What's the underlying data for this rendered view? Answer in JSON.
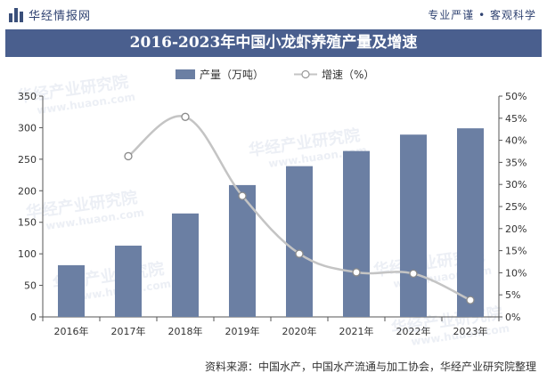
{
  "header": {
    "brand": "华经情报网",
    "tagline": "专业严谨 • 客观科学"
  },
  "footer": {
    "source": "资料来源：中国水产，中国水产流通与加工协会，华经产业研究院整理"
  },
  "watermark": {
    "name": "华经产业研究院",
    "url": "www.huaon.com"
  },
  "colors": {
    "bar": "#6b7fa3",
    "line": "#c4c4c4",
    "title_bg": "#4a5f8e",
    "brand": "#2f4271"
  },
  "chart_data": {
    "type": "bar",
    "title": "2016-2023年中国小龙虾养殖产量及增速",
    "categories": [
      "2016年",
      "2017年",
      "2018年",
      "2019年",
      "2020年",
      "2021年",
      "2022年",
      "2023年"
    ],
    "series": [
      {
        "name": "产量（万吨）",
        "type": "bar",
        "axis": "left",
        "values": [
          82,
          113,
          164,
          209,
          239,
          263,
          289,
          299
        ]
      },
      {
        "name": "增速（%）",
        "type": "line",
        "axis": "right",
        "values": [
          null,
          36.4,
          45.3,
          27.4,
          14.3,
          10.1,
          9.8,
          3.8
        ]
      }
    ],
    "ylim": [
      0,
      350
    ],
    "yticks": [
      0,
      50,
      100,
      150,
      200,
      250,
      300,
      350
    ],
    "y2lim": [
      0,
      50
    ],
    "y2ticks": [
      "0%",
      "5%",
      "10%",
      "15%",
      "20%",
      "25%",
      "30%",
      "35%",
      "40%",
      "45%",
      "50%"
    ],
    "legend_position": "top-center",
    "grid": false
  }
}
